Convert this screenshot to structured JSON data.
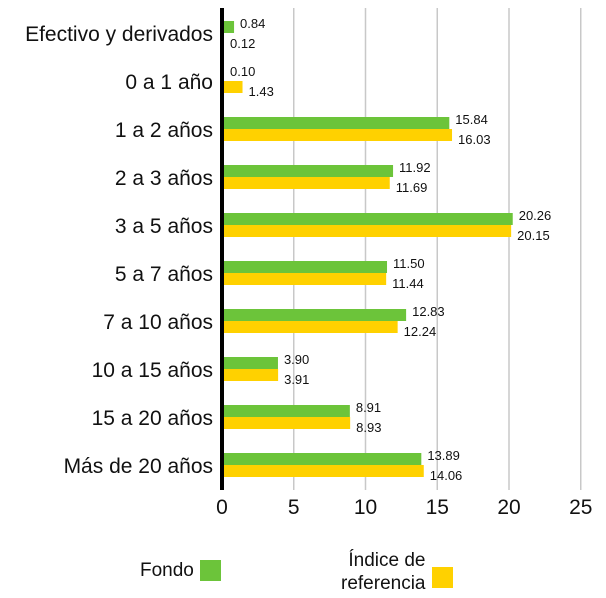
{
  "colors": {
    "fondo": "#6cc43a",
    "indice": "#ffd100",
    "grid": "#c8c8c8",
    "axis": "#000000"
  },
  "legend": {
    "fondo_label": "Fondo",
    "indice_label_line1": "Índice de",
    "indice_label_line2": "referencia"
  },
  "chart_data": {
    "type": "bar",
    "orientation": "horizontal",
    "categories": [
      "Efectivo y derivados",
      "0 a 1 año",
      "1 a 2 años",
      "2 a 3 años",
      "3 a 5 años",
      "5 a 7 años",
      "7 a 10 años",
      "10 a 15 años",
      "15 a 20 años",
      "Más de 20 años"
    ],
    "series": [
      {
        "name": "Fondo",
        "values": [
          0.84,
          0.1,
          15.84,
          11.92,
          20.26,
          11.5,
          12.83,
          3.9,
          8.91,
          13.89
        ],
        "labels": [
          "0.84",
          "0.10",
          "15.84",
          "11.92",
          "20.26",
          "11.50",
          "12.83",
          "3.90",
          "8.91",
          "13.89"
        ]
      },
      {
        "name": "Índice de referencia",
        "values": [
          0.12,
          1.43,
          16.03,
          11.69,
          20.15,
          11.44,
          12.24,
          3.91,
          8.93,
          14.06
        ],
        "labels": [
          "0.12",
          "1.43",
          "16.03",
          "11.69",
          "20.15",
          "11.44",
          "12.24",
          "3.91",
          "8.93",
          "14.06"
        ]
      }
    ],
    "xlim": [
      0,
      25
    ],
    "xticks": [
      0,
      5,
      10,
      15,
      20,
      25
    ],
    "xtick_labels": [
      "0",
      "5",
      "10",
      "15",
      "20",
      "25"
    ],
    "grid": true,
    "legend_position": "bottom"
  }
}
